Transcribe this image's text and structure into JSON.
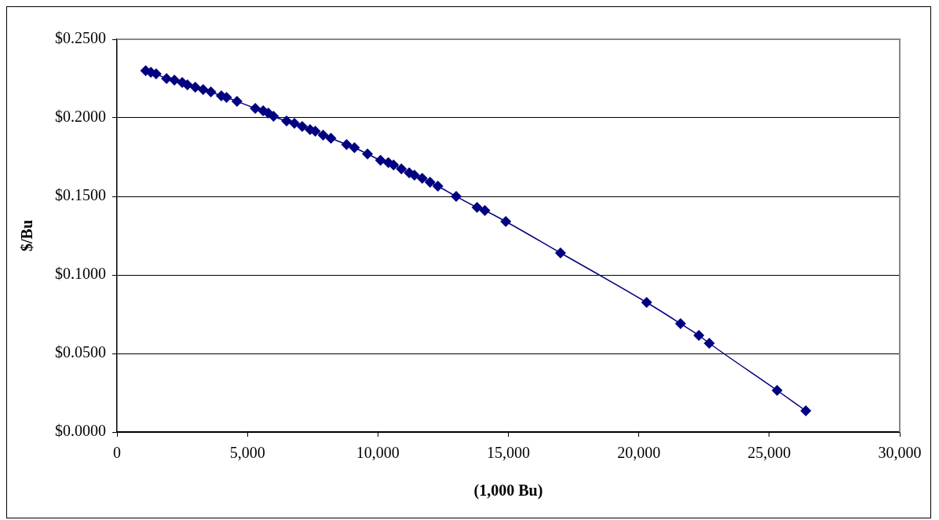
{
  "chart_data": {
    "type": "line",
    "ylabel": "$/Bu",
    "xlabel": "(1,000 Bu)",
    "x": [
      1100,
      1300,
      1500,
      1900,
      2200,
      2500,
      2700,
      3000,
      3300,
      3600,
      4000,
      4200,
      4600,
      5300,
      5600,
      5800,
      6000,
      6500,
      6800,
      7100,
      7400,
      7600,
      7900,
      8200,
      8800,
      9100,
      9600,
      10100,
      10400,
      10600,
      10900,
      11200,
      11400,
      11700,
      12000,
      12300,
      13000,
      13800,
      14100,
      14900,
      17000,
      20300,
      21600,
      22300,
      22700,
      25300,
      26400
    ],
    "series": [
      {
        "color": "#000080",
        "values": [
          0.23,
          0.229,
          0.228,
          0.225,
          0.224,
          0.2225,
          0.221,
          0.2195,
          0.218,
          0.2165,
          0.214,
          0.213,
          0.2105,
          0.206,
          0.2045,
          0.203,
          0.201,
          0.198,
          0.1965,
          0.1945,
          0.1925,
          0.1915,
          0.189,
          0.187,
          0.183,
          0.181,
          0.177,
          0.173,
          0.1715,
          0.17,
          0.1675,
          0.165,
          0.1635,
          0.1615,
          0.159,
          0.1565,
          0.15,
          0.143,
          0.141,
          0.134,
          0.114,
          0.0825,
          0.069,
          0.0615,
          0.0565,
          0.0265,
          0.0135
        ]
      }
    ],
    "xlim": [
      0,
      30000
    ],
    "xticks": [
      0,
      {
        "value": 5000,
        "label": "5,000"
      },
      {
        "value": 10000,
        "label": "10,000"
      },
      {
        "value": 15000,
        "label": "15,000"
      },
      {
        "value": 20000,
        "label": "20,000"
      },
      {
        "value": 25000,
        "label": "25,000"
      },
      {
        "value": 30000,
        "label": "30,000"
      }
    ],
    "ylim": [
      0,
      0.25
    ],
    "yticks": [
      {
        "value": 0,
        "label": "$0.0000"
      },
      {
        "value": 0.05,
        "label": "$0.0500"
      },
      {
        "value": 0.1,
        "label": "$0.1000"
      },
      {
        "value": 0.15,
        "label": "$0.1500"
      },
      {
        "value": 0.2,
        "label": "$0.2000"
      },
      {
        "value": 0.25,
        "label": "$0.2500"
      }
    ],
    "grid": "y",
    "legend": false,
    "marker": "diamond",
    "line_style": "solid"
  }
}
